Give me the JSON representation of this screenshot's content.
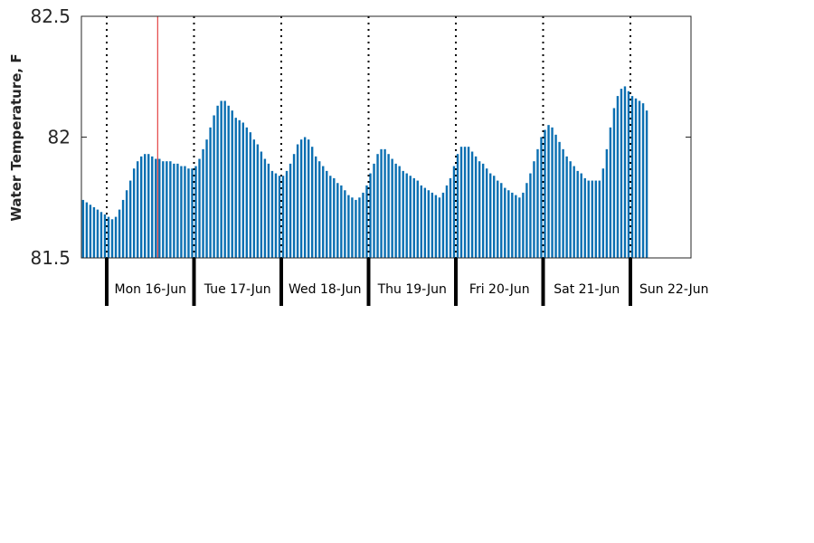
{
  "chart_data": {
    "type": "bar",
    "ylabel": "Water Temperature, F",
    "ylim": [
      81.5,
      82.5
    ],
    "yticks": [
      "81.5",
      "82",
      "82.5"
    ],
    "ytick_values": [
      81.5,
      82,
      82.5
    ],
    "colors": {
      "bar": "#0a6fb2",
      "current_time_marker": "#e02020",
      "day_divider": "#000000",
      "frame": "#262626"
    },
    "x_start_hour": -7,
    "x_end_hour": 165,
    "current_time_hour": 14,
    "day_boundaries_hour": [
      0,
      24,
      48,
      72,
      96,
      120,
      144
    ],
    "day_labels": [
      "Mon 16-Jun",
      "Tue 17-Jun",
      "Wed 18-Jun",
      "Thu 19-Jun",
      "Fri 20-Jun",
      "Sat 21-Jun",
      "Sun 22-Jun"
    ],
    "values": [
      81.74,
      81.73,
      81.72,
      81.71,
      81.7,
      81.69,
      81.68,
      81.67,
      81.66,
      81.67,
      81.7,
      81.74,
      81.78,
      81.82,
      81.87,
      81.9,
      81.92,
      81.93,
      81.93,
      81.92,
      81.91,
      81.91,
      81.9,
      81.9,
      81.9,
      81.89,
      81.89,
      81.88,
      81.88,
      81.87,
      81.87,
      81.88,
      81.91,
      81.95,
      81.99,
      82.04,
      82.09,
      82.13,
      82.15,
      82.15,
      82.13,
      82.11,
      82.08,
      82.07,
      82.06,
      82.04,
      82.02,
      81.99,
      81.97,
      81.94,
      81.91,
      81.89,
      81.86,
      81.85,
      81.84,
      81.84,
      81.86,
      81.89,
      81.93,
      81.97,
      81.99,
      82.0,
      81.99,
      81.96,
      81.92,
      81.9,
      81.88,
      81.86,
      81.84,
      81.83,
      81.81,
      81.8,
      81.78,
      81.76,
      81.75,
      81.74,
      81.75,
      81.77,
      81.8,
      81.85,
      81.89,
      81.93,
      81.95,
      81.95,
      81.93,
      81.91,
      81.89,
      81.88,
      81.86,
      81.85,
      81.84,
      81.83,
      81.82,
      81.8,
      81.79,
      81.78,
      81.77,
      81.76,
      81.75,
      81.77,
      81.8,
      81.83,
      81.88,
      81.93,
      81.96,
      81.96,
      81.96,
      81.94,
      81.92,
      81.9,
      81.89,
      81.87,
      81.85,
      81.84,
      81.82,
      81.81,
      81.79,
      81.78,
      81.77,
      81.76,
      81.75,
      81.77,
      81.81,
      81.85,
      81.9,
      81.95,
      82.0,
      82.03,
      82.05,
      82.04,
      82.01,
      81.98,
      81.95,
      81.92,
      81.9,
      81.88,
      81.86,
      81.85,
      81.83,
      81.82,
      81.82,
      81.82,
      81.82,
      81.87,
      81.95,
      82.04,
      82.12,
      82.17,
      82.2,
      82.21,
      82.19,
      82.17,
      82.16,
      82.15,
      82.14,
      82.11
    ]
  }
}
